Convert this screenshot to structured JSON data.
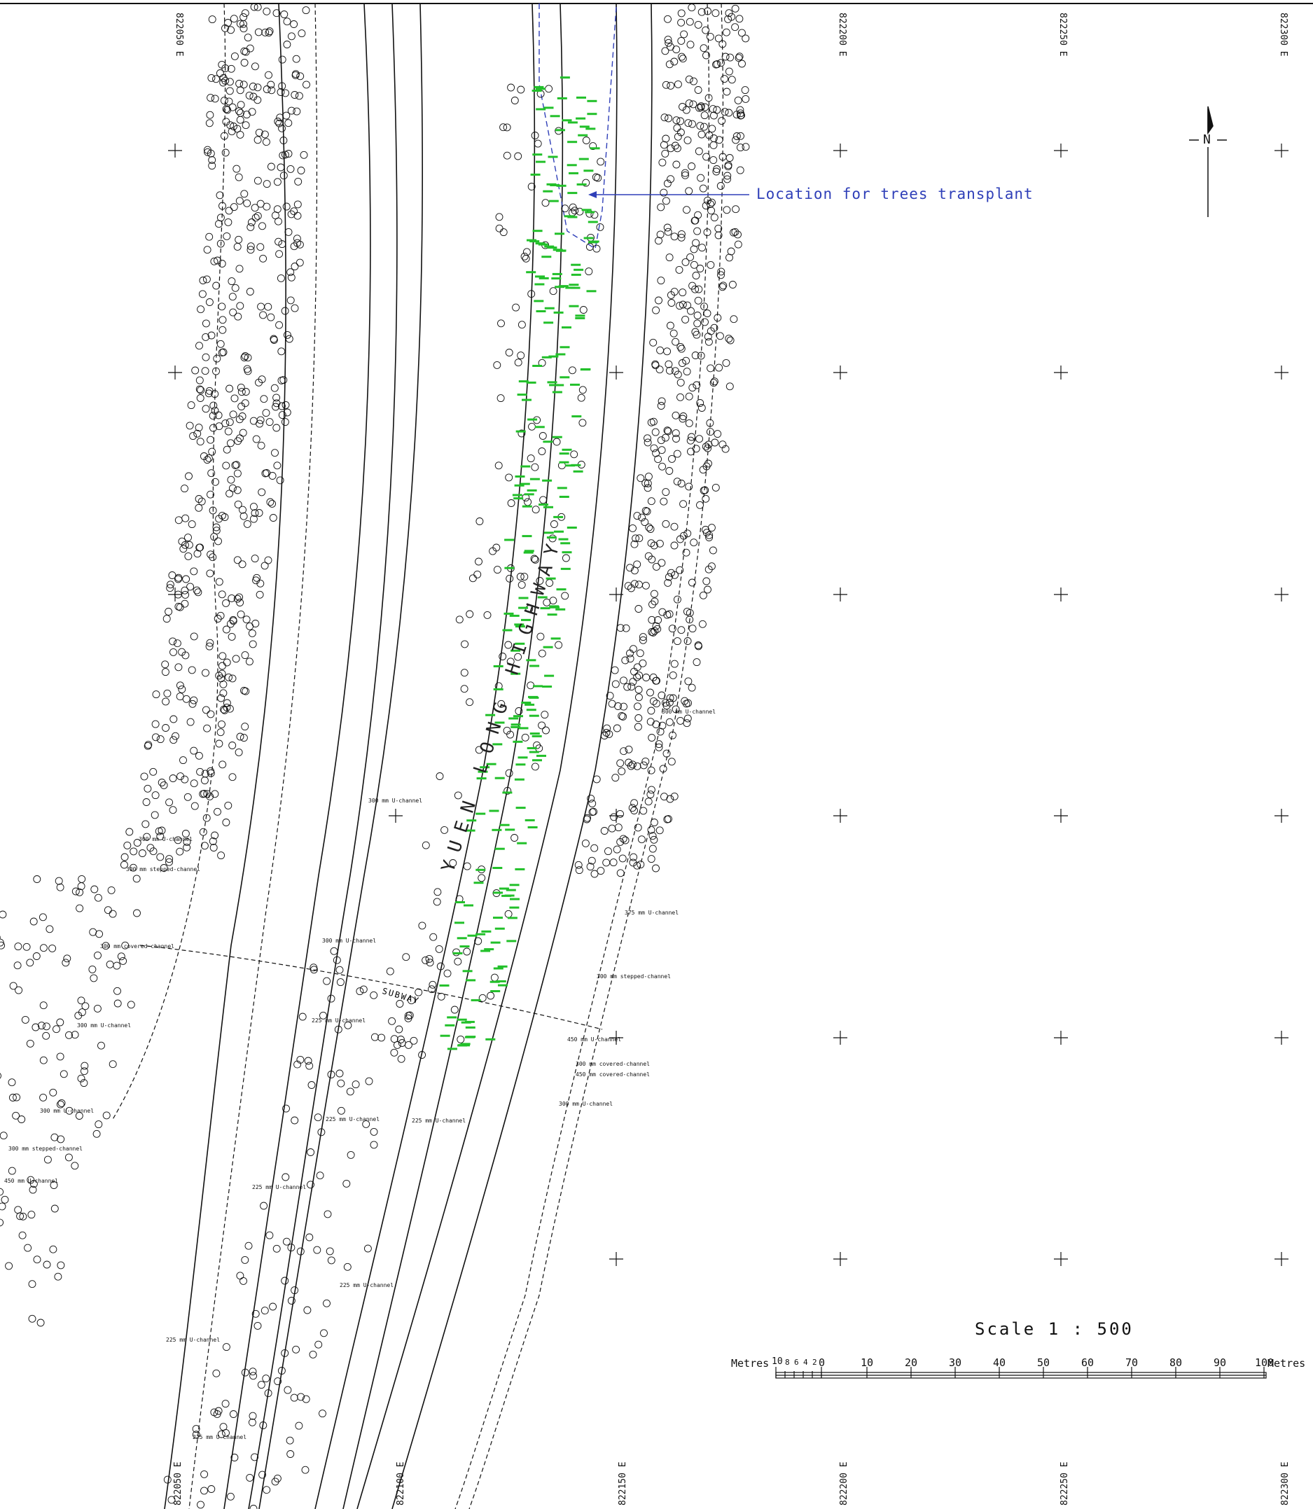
{
  "road_name": "YUEN LONG HIGHWAY",
  "subway_label": "SUBWAY",
  "callout": {
    "text": "Location for trees transplant",
    "color": "#2f3fb8"
  },
  "north_arrow": {
    "label": "N"
  },
  "scale": {
    "title": "Scale  1 : 500",
    "unit_label_left": "Metres",
    "unit_label_right": "Metres",
    "left_ticks": [
      "10",
      "8",
      "6",
      "4",
      "2",
      "0"
    ],
    "main_ticks": [
      "10",
      "20",
      "30",
      "40",
      "50",
      "60",
      "70",
      "80",
      "90",
      "100"
    ]
  },
  "grid_coords": {
    "top": [
      "822050 E",
      "822200 E",
      "822250 E",
      "822300 E"
    ],
    "bottom": [
      "822050 E",
      "822100 E",
      "822150 E",
      "822200 E",
      "822250 E",
      "822300 E"
    ]
  },
  "channels": [
    {
      "text": "300 mm U-channel"
    },
    {
      "text": "300 mm U-channel"
    },
    {
      "text": "300 mm stepped-channel"
    },
    {
      "text": "300 mm covered-channel"
    },
    {
      "text": "300 mm U-channel"
    },
    {
      "text": "300 mm U-channel"
    },
    {
      "text": "300 mm stepped-channel"
    },
    {
      "text": "450 mm U-channel"
    },
    {
      "text": "225 mm U-channel"
    },
    {
      "text": "300 mm U-channel"
    },
    {
      "text": "375 mm U-channel"
    },
    {
      "text": "300 mm stepped-channel"
    },
    {
      "text": "450 mm U-channel"
    },
    {
      "text": "300 mm covered-channel"
    },
    {
      "text": "450 mm covered-channel"
    },
    {
      "text": "300 mm U-channel"
    },
    {
      "text": "225 mm U-channel"
    },
    {
      "text": "225 mm U-channel"
    },
    {
      "text": "225 mm U-channel"
    },
    {
      "text": "225 mm U-channel"
    }
  ],
  "colors": {
    "ink": "#111111",
    "tree_id": "#22c02a",
    "callout": "#2f3fb8"
  }
}
